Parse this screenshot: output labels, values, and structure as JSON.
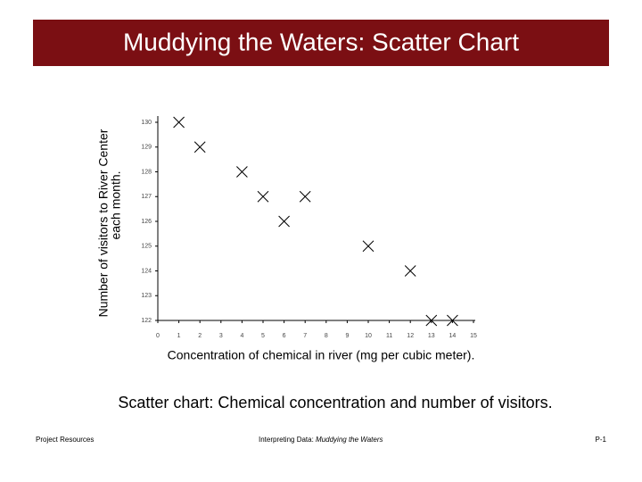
{
  "chart_data": {
    "type": "scatter",
    "title": "Muddying the Waters: Scatter Chart",
    "x": [
      1,
      2,
      4,
      5,
      7,
      6,
      10,
      12,
      13,
      14
    ],
    "values": [
      130,
      129,
      128,
      127,
      127,
      126,
      125,
      124,
      122,
      122
    ],
    "xlim": [
      0,
      15
    ],
    "ylim": [
      122,
      130
    ],
    "xticks": [
      0,
      1,
      2,
      3,
      4,
      5,
      6,
      7,
      8,
      9,
      10,
      11,
      12,
      13,
      14,
      15
    ],
    "yticks": [
      122,
      123,
      124,
      125,
      126,
      127,
      128,
      129,
      130
    ],
    "x_label": "Concentration of chemical in river (mg per cubic meter).",
    "y_label": [
      "Number of visitors to River Center",
      "each month."
    ],
    "color": "#000000"
  },
  "caption": "Scatter chart: Chemical concentration and number of visitors.",
  "footer": {
    "left": "Project Resources",
    "center": "Interpreting Data:",
    "center_italic": "Muddying the Waters",
    "right": "P-1"
  }
}
